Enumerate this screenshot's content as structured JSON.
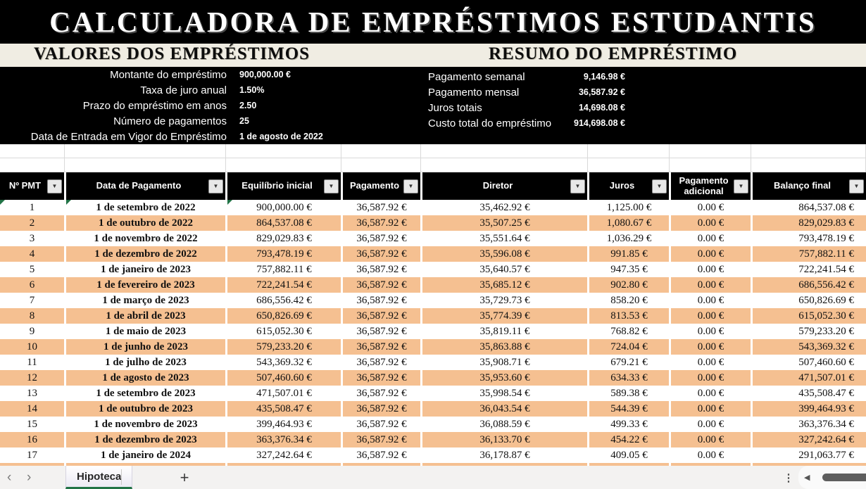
{
  "title": "CALCULADORA DE EMPRÉSTIMOS ESTUDANTIS",
  "loan_inputs": {
    "heading": "VALORES DOS EMPRÉSTIMOS",
    "fields": [
      {
        "label": "Montante do empréstimo",
        "value": "900,000.00 €"
      },
      {
        "label": "Taxa de juro anual",
        "value": "1.50%"
      },
      {
        "label": "Prazo do empréstimo em anos",
        "value": "2.50"
      },
      {
        "label": "Número de pagamentos",
        "value": "25"
      },
      {
        "label": "Data de Entrada em Vigor do Empréstimo",
        "value": "1 de agosto de 2022"
      }
    ]
  },
  "loan_summary": {
    "heading": "RESUMO DO EMPRÉSTIMO",
    "fields": [
      {
        "label": "Pagamento semanal",
        "value": "9,146.98 €"
      },
      {
        "label": "Pagamento mensal",
        "value": "36,587.92 €"
      },
      {
        "label": "Juros totais",
        "value": "14,698.08 €"
      },
      {
        "label": "Custo total do empréstimo",
        "value": "914,698.08 €"
      }
    ]
  },
  "table": {
    "headers": [
      "Nº PMT",
      "Data de Pagamento",
      "Equilíbrio inicial",
      "Pagamento",
      "Diretor",
      "Juros",
      "Pagamento adicional",
      "Balanço final"
    ],
    "filter_icon": "▼",
    "rows": [
      [
        "1",
        "1 de setembro de 2022",
        "900,000.00 €",
        "36,587.92 €",
        "35,462.92 €",
        "1,125.00 €",
        "0.00 €",
        "864,537.08 €"
      ],
      [
        "2",
        "1 de outubro de 2022",
        "864,537.08 €",
        "36,587.92 €",
        "35,507.25 €",
        "1,080.67 €",
        "0.00 €",
        "829,029.83 €"
      ],
      [
        "3",
        "1 de novembro de 2022",
        "829,029.83 €",
        "36,587.92 €",
        "35,551.64 €",
        "1,036.29 €",
        "0.00 €",
        "793,478.19 €"
      ],
      [
        "4",
        "1 de dezembro de 2022",
        "793,478.19 €",
        "36,587.92 €",
        "35,596.08 €",
        "991.85 €",
        "0.00 €",
        "757,882.11 €"
      ],
      [
        "5",
        "1 de janeiro de 2023",
        "757,882.11 €",
        "36,587.92 €",
        "35,640.57 €",
        "947.35 €",
        "0.00 €",
        "722,241.54 €"
      ],
      [
        "6",
        "1 de fevereiro de 2023",
        "722,241.54 €",
        "36,587.92 €",
        "35,685.12 €",
        "902.80 €",
        "0.00 €",
        "686,556.42 €"
      ],
      [
        "7",
        "1 de março de 2023",
        "686,556.42 €",
        "36,587.92 €",
        "35,729.73 €",
        "858.20 €",
        "0.00 €",
        "650,826.69 €"
      ],
      [
        "8",
        "1 de abril de 2023",
        "650,826.69 €",
        "36,587.92 €",
        "35,774.39 €",
        "813.53 €",
        "0.00 €",
        "615,052.30 €"
      ],
      [
        "9",
        "1 de maio de 2023",
        "615,052.30 €",
        "36,587.92 €",
        "35,819.11 €",
        "768.82 €",
        "0.00 €",
        "579,233.20 €"
      ],
      [
        "10",
        "1 de junho de 2023",
        "579,233.20 €",
        "36,587.92 €",
        "35,863.88 €",
        "724.04 €",
        "0.00 €",
        "543,369.32 €"
      ],
      [
        "11",
        "1 de julho de 2023",
        "543,369.32 €",
        "36,587.92 €",
        "35,908.71 €",
        "679.21 €",
        "0.00 €",
        "507,460.60 €"
      ],
      [
        "12",
        "1 de agosto de 2023",
        "507,460.60 €",
        "36,587.92 €",
        "35,953.60 €",
        "634.33 €",
        "0.00 €",
        "471,507.01 €"
      ],
      [
        "13",
        "1 de setembro de 2023",
        "471,507.01 €",
        "36,587.92 €",
        "35,998.54 €",
        "589.38 €",
        "0.00 €",
        "435,508.47 €"
      ],
      [
        "14",
        "1 de outubro de 2023",
        "435,508.47 €",
        "36,587.92 €",
        "36,043.54 €",
        "544.39 €",
        "0.00 €",
        "399,464.93 €"
      ],
      [
        "15",
        "1 de novembro de 2023",
        "399,464.93 €",
        "36,587.92 €",
        "36,088.59 €",
        "499.33 €",
        "0.00 €",
        "363,376.34 €"
      ],
      [
        "16",
        "1 de dezembro de 2023",
        "363,376.34 €",
        "36,587.92 €",
        "36,133.70 €",
        "454.22 €",
        "0.00 €",
        "327,242.64 €"
      ],
      [
        "17",
        "1 de janeiro de 2024",
        "327,242.64 €",
        "36,587.92 €",
        "36,178.87 €",
        "409.05 €",
        "0.00 €",
        "291,063.77 €"
      ]
    ]
  },
  "sheet_bar": {
    "prev": "‹",
    "next": "›",
    "active_tab": "Hipoteca",
    "add_sheet": "+",
    "menu": "⋮",
    "scroll_left_arrow": "◀"
  },
  "colors": {
    "row_accent": "#f5c091",
    "band_background": "#f0ede3",
    "section_background": "#000000",
    "tab_underline_green": "#217346",
    "error_triangle_green": "#217346"
  }
}
